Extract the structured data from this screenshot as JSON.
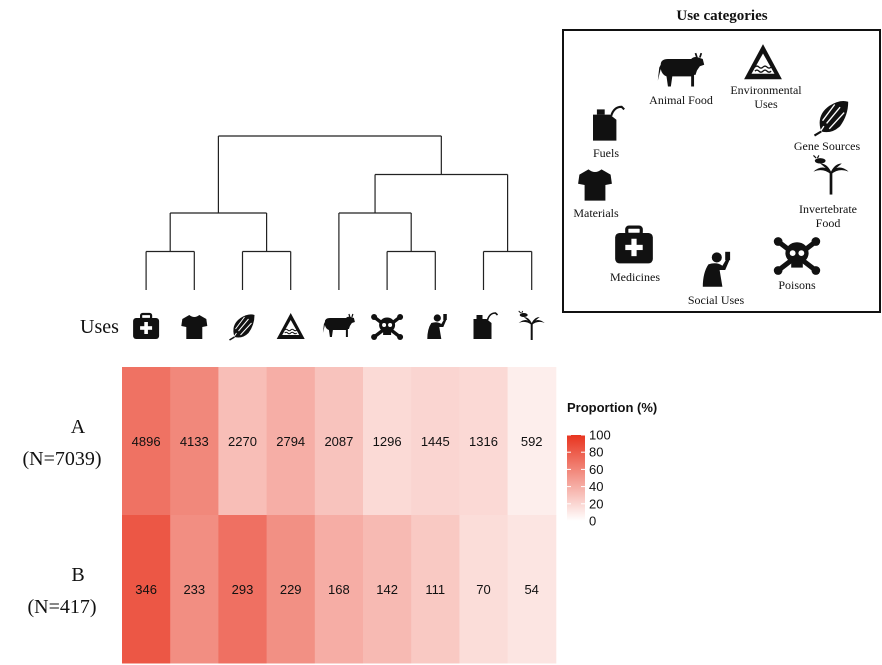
{
  "chart_data": {
    "type": "heatmap",
    "icon_row_label": "Uses",
    "columns": [
      {
        "category": "Medicines",
        "icon": "medical-kit-icon"
      },
      {
        "category": "Materials",
        "icon": "t-shirt-icon"
      },
      {
        "category": "Gene Sources",
        "icon": "seed-icon"
      },
      {
        "category": "Environmental Uses",
        "icon": "warning-triangle-icon"
      },
      {
        "category": "Animal Food",
        "icon": "cow-icon"
      },
      {
        "category": "Poisons",
        "icon": "skull-crossbones-icon"
      },
      {
        "category": "Social Uses",
        "icon": "drinking-person-icon"
      },
      {
        "category": "Fuels",
        "icon": "fuel-can-icon"
      },
      {
        "category": "Invertebrate Food",
        "icon": "insect-plant-icon"
      }
    ],
    "rows": [
      {
        "name": "A",
        "n_label": "(N=7039)",
        "values": [
          4896,
          4133,
          2270,
          2794,
          2087,
          1296,
          1445,
          1316,
          592
        ]
      },
      {
        "name": "B",
        "n_label": "(N=417)",
        "values": [
          346,
          233,
          293,
          229,
          168,
          142,
          111,
          70,
          54
        ]
      }
    ],
    "legend": {
      "title": "Proportion (%)",
      "ticks": [
        100,
        80,
        60,
        40,
        20,
        0
      ],
      "range": [
        0,
        100
      ],
      "color_low": "#ffffff",
      "color_high": "#e8341f"
    },
    "dendrogram": "((Medicines,Materials),(Gene Sources,Environmental Uses)),((Animal Food,(Poisons,Social Uses)),(Fuels,Invertebrate Food))"
  },
  "use_categories_panel": {
    "title": "Use categories",
    "items": [
      {
        "label": "Animal Food",
        "icon": "cow-icon"
      },
      {
        "label": "Environmental\nUses",
        "icon": "warning-triangle-icon"
      },
      {
        "label": "Fuels",
        "icon": "fuel-can-icon"
      },
      {
        "label": "Gene Sources",
        "icon": "seed-icon"
      },
      {
        "label": "Materials",
        "icon": "t-shirt-icon"
      },
      {
        "label": "Invertebrate\nFood",
        "icon": "insect-plant-icon"
      },
      {
        "label": "Medicines",
        "icon": "medical-kit-icon"
      },
      {
        "label": "Social Uses",
        "icon": "drinking-person-icon"
      },
      {
        "label": "Poisons",
        "icon": "skull-crossbones-icon"
      }
    ]
  }
}
